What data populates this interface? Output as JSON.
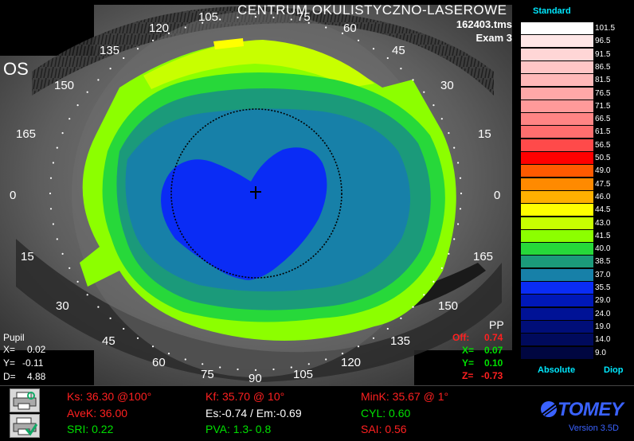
{
  "header": {
    "clinic": "CENTRUM  OKULISTYCZNO-LASEROWE",
    "file": "162403.tms",
    "exam": "Exam 3",
    "eye": "OS"
  },
  "axis_labels": [
    "105",
    "75",
    "120",
    "60",
    "135",
    "45",
    "150",
    "30",
    "165",
    "15",
    "0",
    "0",
    "15",
    "165",
    "30",
    "150",
    "45",
    "135",
    "60",
    "120",
    "75",
    "90",
    "105"
  ],
  "pupil": {
    "title": "Pupil",
    "x_label": "X=",
    "x_val": "0.02",
    "y_label": "Y=",
    "y_val": "-0.11",
    "d_label": "D=",
    "d_val": "4.88"
  },
  "pp": {
    "title": "PP",
    "off_label": "Off:",
    "off_val": "0.74",
    "x_label": "X=",
    "x_val": "0.07",
    "y_label": "Y=",
    "y_val": "0.10",
    "z_label": "Z=",
    "z_val": "-0.73"
  },
  "legend": {
    "title": "Standard",
    "footer_left": "Absolute",
    "footer_right": "Diop",
    "entries": [
      {
        "value": "101.5",
        "color": "#ffffff"
      },
      {
        "value": "96.5",
        "color": "#ffe7e7"
      },
      {
        "value": "91.5",
        "color": "#ffd6d6"
      },
      {
        "value": "86.5",
        "color": "#ffc6c6"
      },
      {
        "value": "81.5",
        "color": "#ffb8b8"
      },
      {
        "value": "76.5",
        "color": "#ffa8a8"
      },
      {
        "value": "71.5",
        "color": "#ff9a9a"
      },
      {
        "value": "66.5",
        "color": "#ff8484"
      },
      {
        "value": "61.5",
        "color": "#ff6e6e"
      },
      {
        "value": "56.5",
        "color": "#ff4a4a"
      },
      {
        "value": "50.5",
        "color": "#ff0000"
      },
      {
        "value": "49.0",
        "color": "#ff5a00"
      },
      {
        "value": "47.5",
        "color": "#ff8a00"
      },
      {
        "value": "46.0",
        "color": "#ffb000"
      },
      {
        "value": "44.5",
        "color": "#ffff00"
      },
      {
        "value": "43.0",
        "color": "#c8ff00"
      },
      {
        "value": "41.5",
        "color": "#8cff00"
      },
      {
        "value": "40.0",
        "color": "#27d83a"
      },
      {
        "value": "38.5",
        "color": "#1b9a7a"
      },
      {
        "value": "37.0",
        "color": "#1780a8"
      },
      {
        "value": "35.5",
        "color": "#0a2cf5"
      },
      {
        "value": "29.0",
        "color": "#0018b8"
      },
      {
        "value": "24.0",
        "color": "#001296"
      },
      {
        "value": "19.0",
        "color": "#000e78"
      },
      {
        "value": "14.0",
        "color": "#000a5c"
      },
      {
        "value": "9.0",
        "color": "#000640"
      }
    ]
  },
  "stats": {
    "ks": "Ks: 36.30 @100°",
    "kf": "Kf: 35.70 @ 10°",
    "mink": "MinK: 35.67 @  1°",
    "avek": "AveK: 36.00",
    "es_em": "Es:-0.74 / Em:-0.69",
    "cyl": "CYL:  0.60",
    "sri": "SRI: 0.22",
    "pva": "PVA:   1.3-  0.8",
    "sai": "SAI: 0.56"
  },
  "brand": {
    "name": "TOMEY",
    "version": "Version 3.5D"
  },
  "colors": {
    "red": "#ff2020",
    "green": "#00e000",
    "white": "#ffffff",
    "cyan": "#00e8ff",
    "blue": "#3a62ff"
  }
}
